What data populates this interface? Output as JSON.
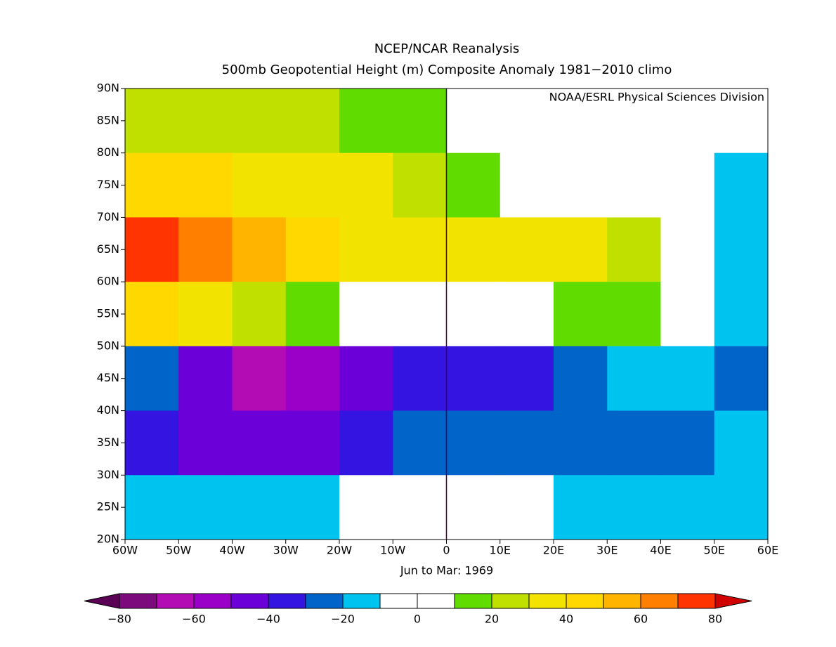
{
  "chart_data": {
    "type": "map",
    "title": "NCEP/NCAR Reanalysis",
    "subtitle": "500mb Geopotential Height (m) Composite Anomaly 1981−2010 climo",
    "credit": "NOAA/ESRL Physical Sciences Division",
    "x_label": "Jun to Mar: 1969",
    "xlim": [
      -60,
      60
    ],
    "ylim": [
      20,
      90
    ],
    "xticks": [
      {
        "value": -60,
        "label": "60W"
      },
      {
        "value": -50,
        "label": "50W"
      },
      {
        "value": -40,
        "label": "40W"
      },
      {
        "value": -30,
        "label": "30W"
      },
      {
        "value": -20,
        "label": "20W"
      },
      {
        "value": -10,
        "label": "10W"
      },
      0,
      {
        "value": 10,
        "label": "10E"
      },
      {
        "value": 20,
        "label": "20E"
      },
      {
        "value": 30,
        "label": "30E"
      },
      {
        "value": 40,
        "label": "40E"
      },
      {
        "value": 50,
        "label": "50E"
      },
      {
        "value": 60,
        "label": "60E"
      }
    ],
    "yticks": [
      {
        "value": 20,
        "label": "20N"
      },
      {
        "value": 25,
        "label": "25N"
      },
      {
        "value": 30,
        "label": "30N"
      },
      {
        "value": 35,
        "label": "35N"
      },
      {
        "value": 40,
        "label": "40N"
      },
      {
        "value": 45,
        "label": "45N"
      },
      {
        "value": 50,
        "label": "50N"
      },
      {
        "value": 55,
        "label": "55N"
      },
      {
        "value": 60,
        "label": "60N"
      },
      {
        "value": 65,
        "label": "65N"
      },
      {
        "value": 70,
        "label": "70N"
      },
      {
        "value": 75,
        "label": "75N"
      },
      {
        "value": 80,
        "label": "80N"
      },
      {
        "value": 85,
        "label": "85N"
      },
      {
        "value": 90,
        "label": "90N"
      }
    ],
    "grid_lon": [
      -55,
      -45,
      -35,
      -25,
      -15,
      -5,
      5,
      15,
      25,
      35,
      45,
      55
    ],
    "grid_lat": [
      85,
      75,
      65,
      55,
      45,
      35,
      25
    ],
    "values": [
      [
        25,
        25,
        25,
        20,
        15,
        15,
        5,
        0,
        0,
        0,
        0,
        0
      ],
      [
        45,
        45,
        35,
        35,
        30,
        25,
        15,
        5,
        0,
        0,
        -5,
        -15
      ],
      [
        75,
        65,
        55,
        45,
        35,
        35,
        35,
        35,
        35,
        25,
        0,
        -15
      ],
      [
        45,
        35,
        25,
        15,
        5,
        5,
        5,
        5,
        15,
        15,
        5,
        -15
      ],
      [
        -25,
        -45,
        -65,
        -55,
        -45,
        -35,
        -35,
        -35,
        -25,
        -15,
        -15,
        -25
      ],
      [
        -35,
        -45,
        -45,
        -45,
        -35,
        -25,
        -25,
        -25,
        -25,
        -25,
        -25,
        -15
      ],
      [
        -15,
        -15,
        -15,
        -15,
        -5,
        -5,
        -5,
        -5,
        -15,
        -15,
        -15,
        -15
      ]
    ],
    "colorbar": {
      "levels": [
        -80,
        -70,
        -60,
        -50,
        -40,
        -30,
        -20,
        -10,
        0,
        10,
        20,
        30,
        40,
        50,
        60,
        70,
        80
      ],
      "colors": [
        "#7c0a7c",
        "#b40cb4",
        "#9a00c8",
        "#6c00d8",
        "#3414e0",
        "#0064c8",
        "#00c4f0",
        "#ffffff",
        "#ffffff",
        "#60dc00",
        "#c0e000",
        "#f2e400",
        "#ffd800",
        "#ffb400",
        "#ff8000",
        "#ff3400"
      ],
      "under_color": "#5a0055",
      "over_color": "#d00000",
      "ticks": [
        {
          "value": -80,
          "label": "−80"
        },
        {
          "value": -60,
          "label": "−60"
        },
        {
          "value": -40,
          "label": "−40"
        },
        {
          "value": -20,
          "label": "−20"
        },
        0,
        20,
        40,
        60,
        80
      ]
    }
  }
}
